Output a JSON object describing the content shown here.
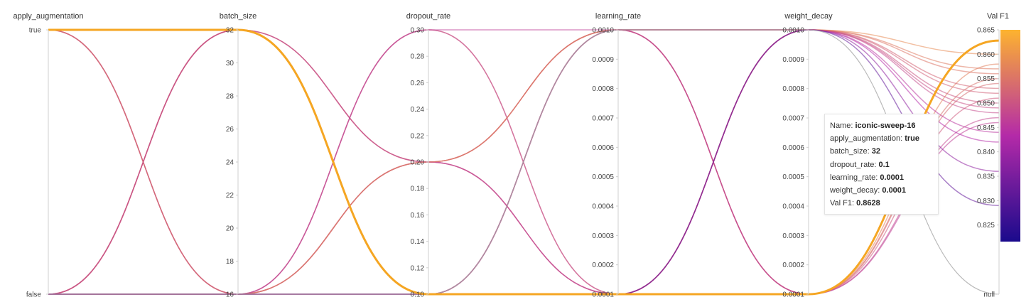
{
  "chart_data": {
    "type": "parallel-coordinates",
    "axes": [
      {
        "key": "apply_augmentation",
        "label": "apply_augmentation",
        "kind": "categorical",
        "categories": [
          "false",
          "true"
        ],
        "tick_labels": [
          "true",
          "false"
        ]
      },
      {
        "key": "batch_size",
        "label": "batch_size",
        "kind": "numeric",
        "range": [
          16,
          32
        ],
        "tick_labels": [
          "32",
          "30",
          "28",
          "26",
          "24",
          "22",
          "20",
          "18",
          "16"
        ]
      },
      {
        "key": "dropout_rate",
        "label": "dropout_rate",
        "kind": "numeric",
        "range": [
          0.1,
          0.3
        ],
        "tick_labels": [
          "0.30",
          "0.28",
          "0.26",
          "0.24",
          "0.22",
          "0.20",
          "0.18",
          "0.16",
          "0.14",
          "0.12",
          "0.10"
        ]
      },
      {
        "key": "learning_rate",
        "label": "learning_rate",
        "kind": "numeric",
        "range": [
          0.0001,
          0.001
        ],
        "tick_labels": [
          "0.0010",
          "0.0009",
          "0.0008",
          "0.0007",
          "0.0006",
          "0.0005",
          "0.0004",
          "0.0003",
          "0.0002",
          "0.0001"
        ]
      },
      {
        "key": "weight_decay",
        "label": "weight_decay",
        "kind": "numeric",
        "range": [
          0.0001,
          0.001
        ],
        "tick_labels": [
          "0.0010",
          "0.0009",
          "0.0008",
          "0.0007",
          "0.0006",
          "0.0005",
          "0.0004",
          "0.0003",
          "0.0002",
          "0.0001"
        ]
      },
      {
        "key": "val_f1",
        "label": "Val F1",
        "kind": "metric",
        "range": [
          0.8216,
          0.865
        ],
        "tick_labels": [
          "0.865",
          "0.860",
          "0.855",
          "0.850",
          "0.845",
          "0.840",
          "0.835",
          "0.830",
          "0.825",
          "null"
        ]
      }
    ],
    "colorscale": {
      "low": "#1a0a8c",
      "mid": "#b42aa8",
      "high": "#fdb32f"
    },
    "highlight_color": "#f5a623",
    "runs": [
      {
        "apply_augmentation": "true",
        "batch_size": 32,
        "dropout_rate": 0.1,
        "learning_rate": 0.0001,
        "weight_decay": 0.0001,
        "val_f1": 0.8628,
        "highlight": true
      },
      {
        "apply_augmentation": "true",
        "batch_size": 16,
        "dropout_rate": 0.3,
        "learning_rate": 0.0001,
        "weight_decay": 0.001,
        "val_f1": 0.852
      },
      {
        "apply_augmentation": "true",
        "batch_size": 16,
        "dropout_rate": 0.3,
        "learning_rate": 0.0001,
        "weight_decay": 0.001,
        "val_f1": 0.848
      },
      {
        "apply_augmentation": "false",
        "batch_size": 32,
        "dropout_rate": 0.2,
        "learning_rate": 0.001,
        "weight_decay": 0.0001,
        "val_f1": 0.858
      },
      {
        "apply_augmentation": "false",
        "batch_size": 32,
        "dropout_rate": 0.2,
        "learning_rate": 0.0001,
        "weight_decay": 0.001,
        "val_f1": 0.856
      },
      {
        "apply_augmentation": "false",
        "batch_size": 32,
        "dropout_rate": 0.1,
        "learning_rate": 0.001,
        "weight_decay": 0.0001,
        "val_f1": 0.854
      },
      {
        "apply_augmentation": "false",
        "batch_size": 16,
        "dropout_rate": 0.2,
        "learning_rate": 0.001,
        "weight_decay": 0.001,
        "val_f1": 0.853
      },
      {
        "apply_augmentation": "false",
        "batch_size": 16,
        "dropout_rate": 0.2,
        "learning_rate": 0.0001,
        "weight_decay": 0.0001,
        "val_f1": 0.851
      },
      {
        "apply_augmentation": "false",
        "batch_size": 16,
        "dropout_rate": 0.1,
        "learning_rate": 0.001,
        "weight_decay": 0.001,
        "val_f1": 0.849
      },
      {
        "apply_augmentation": "false",
        "batch_size": 16,
        "dropout_rate": 0.2,
        "learning_rate": 0.001,
        "weight_decay": 0.0001,
        "val_f1": 0.847
      },
      {
        "apply_augmentation": "true",
        "batch_size": 16,
        "dropout_rate": 0.3,
        "learning_rate": 0.001,
        "weight_decay": 0.0001,
        "val_f1": 0.846
      },
      {
        "apply_augmentation": "false",
        "batch_size": 32,
        "dropout_rate": 0.2,
        "learning_rate": 0.0001,
        "weight_decay": 0.001,
        "val_f1": 0.844
      },
      {
        "apply_augmentation": "false",
        "batch_size": 16,
        "dropout_rate": 0.1,
        "learning_rate": 0.0001,
        "weight_decay": 0.001,
        "val_f1": 0.842
      },
      {
        "apply_augmentation": "false",
        "batch_size": 16,
        "dropout_rate": 0.2,
        "learning_rate": 0.001,
        "weight_decay": 0.001,
        "val_f1": 0.86
      },
      {
        "apply_augmentation": "true",
        "batch_size": 16,
        "dropout_rate": 0.1,
        "learning_rate": 0.001,
        "weight_decay": 0.001,
        "val_f1": 0.857
      },
      {
        "apply_augmentation": "false",
        "batch_size": 16,
        "dropout_rate": 0.1,
        "learning_rate": 0.0001,
        "weight_decay": 0.0001,
        "val_f1": 0.855
      },
      {
        "apply_augmentation": "false",
        "batch_size": 32,
        "dropout_rate": 0.1,
        "learning_rate": 0.0001,
        "weight_decay": 0.001,
        "val_f1": 0.85
      },
      {
        "apply_augmentation": "false",
        "batch_size": 16,
        "dropout_rate": 0.1,
        "learning_rate": 0.001,
        "weight_decay": 0.001,
        "val_f1": 0.836
      },
      {
        "apply_augmentation": "false",
        "batch_size": 16,
        "dropout_rate": 0.1,
        "learning_rate": 0.0001,
        "weight_decay": 0.001,
        "val_f1": 0.829
      },
      {
        "apply_augmentation": "false",
        "batch_size": 16,
        "dropout_rate": 0.1,
        "learning_rate": 0.001,
        "weight_decay": 0.001,
        "val_f1": null
      }
    ]
  },
  "tooltip": {
    "name_label": "Name: ",
    "name_value": "iconic-sweep-16",
    "rows": [
      {
        "label": "apply_augmentation: ",
        "value": "true"
      },
      {
        "label": "batch_size: ",
        "value": "32"
      },
      {
        "label": "dropout_rate: ",
        "value": "0.1"
      },
      {
        "label": "learning_rate: ",
        "value": "0.0001"
      },
      {
        "label": "weight_decay: ",
        "value": "0.0001"
      },
      {
        "label": "Val F1: ",
        "value": "0.8628"
      }
    ]
  }
}
